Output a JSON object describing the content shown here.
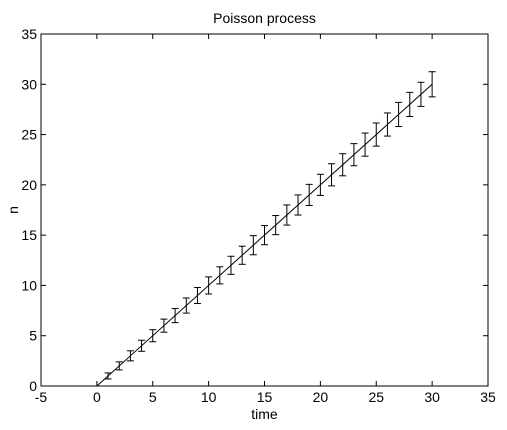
{
  "chart_data": {
    "type": "line",
    "title": "Poisson process",
    "xlabel": "time",
    "ylabel": "n",
    "xlim": [
      -5,
      35
    ],
    "ylim": [
      0,
      35
    ],
    "xticks": [
      -5,
      0,
      5,
      10,
      15,
      20,
      25,
      30,
      35
    ],
    "yticks": [
      0,
      5,
      10,
      15,
      20,
      25,
      30,
      35
    ],
    "grid": false,
    "legend": "none",
    "line_color": "#000000",
    "series": [
      {
        "x": [
          0,
          30
        ],
        "y": [
          0,
          30
        ]
      }
    ],
    "errorbars": {
      "x": [
        1,
        2,
        3,
        4,
        5,
        6,
        7,
        8,
        9,
        10,
        11,
        12,
        13,
        14,
        15,
        16,
        17,
        18,
        19,
        20,
        21,
        22,
        23,
        24,
        25,
        26,
        27,
        28,
        29,
        30
      ],
      "y": [
        1,
        2,
        3,
        4,
        5,
        6,
        7,
        8,
        9,
        10,
        11,
        12,
        13,
        14,
        15,
        16,
        17,
        18,
        19,
        20,
        21,
        22,
        23,
        24,
        25,
        26,
        27,
        28,
        29,
        30
      ],
      "err": [
        0.3,
        0.4,
        0.5,
        0.55,
        0.6,
        0.65,
        0.7,
        0.75,
        0.8,
        0.85,
        0.85,
        0.9,
        0.9,
        0.95,
        0.95,
        0.95,
        1.0,
        1.0,
        1.05,
        1.05,
        1.1,
        1.1,
        1.1,
        1.15,
        1.15,
        1.15,
        1.2,
        1.2,
        1.2,
        1.25
      ]
    }
  }
}
